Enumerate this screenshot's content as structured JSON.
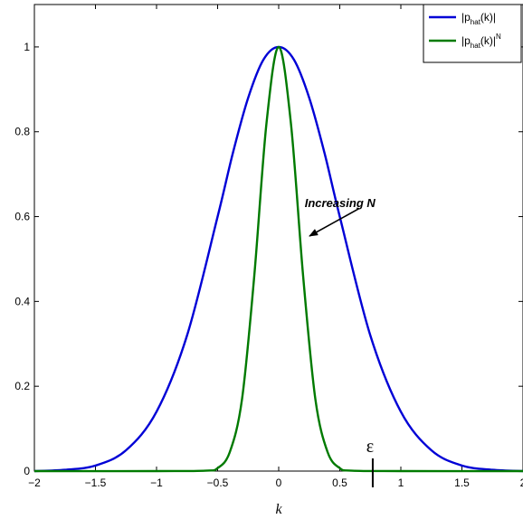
{
  "chart_data": {
    "type": "line",
    "xlabel": "k",
    "ylabel": "",
    "title": "",
    "xlim": [
      -2,
      2
    ],
    "ylim": [
      0,
      1.1
    ],
    "xticks": [
      -2,
      -1.5,
      -1,
      -0.5,
      0,
      0.5,
      1,
      1.5,
      2
    ],
    "xtick_labels": [
      "−2",
      "−1.5",
      "−1",
      "−0.5",
      "0",
      "0.5",
      "1",
      "1.5",
      "2"
    ],
    "yticks": [
      0,
      0.2,
      0.4,
      0.6,
      0.8,
      1
    ],
    "ytick_labels": [
      "0",
      "0.2",
      "0.4",
      "0.6",
      "0.8",
      "1"
    ],
    "grid": false,
    "legend_position": "top-right",
    "series": [
      {
        "name_main": "|p",
        "name_sub": "hat",
        "name_tail": "(k)|",
        "name_sup": "",
        "color": "#0000d6",
        "x": [
          -2,
          -1.75,
          -1.5,
          -1.25,
          -1,
          -0.75,
          -0.5,
          -0.375,
          -0.25,
          -0.125,
          0,
          0.125,
          0.25,
          0.375,
          0.5,
          0.75,
          1,
          1.25,
          1.5,
          1.75,
          2
        ],
        "y": [
          0.0,
          0.003,
          0.013,
          0.049,
          0.14,
          0.32,
          0.6,
          0.75,
          0.88,
          0.97,
          1.0,
          0.97,
          0.88,
          0.75,
          0.6,
          0.32,
          0.14,
          0.049,
          0.013,
          0.003,
          0.0
        ]
      },
      {
        "name_main": "|p",
        "name_sub": "hat",
        "name_tail": "(k)|",
        "name_sup": "N",
        "color": "#007a00",
        "x": [
          -2,
          -1,
          -0.6,
          -0.5,
          -0.4,
          -0.3,
          -0.2,
          -0.1,
          0,
          0.1,
          0.2,
          0.3,
          0.4,
          0.5,
          0.6,
          1,
          2
        ],
        "y": [
          0.0,
          0.0,
          0.001,
          0.007,
          0.045,
          0.17,
          0.46,
          0.82,
          1.0,
          0.82,
          0.46,
          0.17,
          0.045,
          0.007,
          0.001,
          0.0,
          0.0
        ]
      }
    ],
    "annotations": [
      {
        "text": "Increasing N",
        "x": 0.65,
        "y": 0.65,
        "arrow_from": [
          0.72,
          0.63
        ],
        "arrow_to": [
          0.23,
          0.55
        ]
      },
      {
        "text": "ε",
        "x": 0.77,
        "y": 0.02,
        "marker_x": 0.77
      }
    ]
  }
}
